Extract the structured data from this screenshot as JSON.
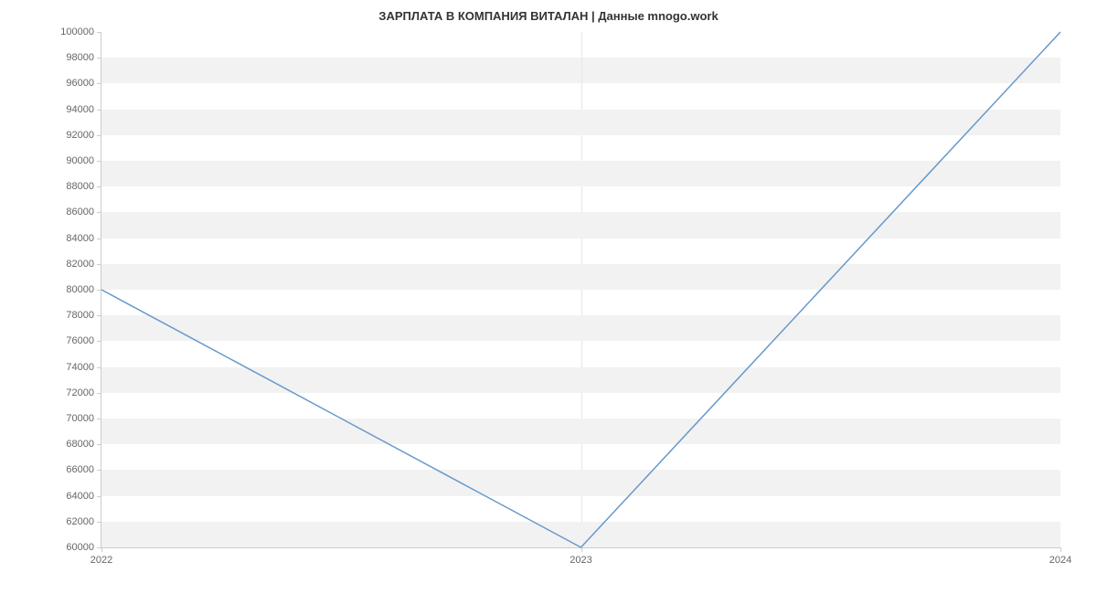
{
  "chart": {
    "type": "line",
    "title": "ЗАРПЛАТА В КОМПАНИЯ ВИТАЛАН | Данные mnogo.work",
    "title_fontsize": 13,
    "title_color": "#333333",
    "background_color": "#ffffff",
    "plot_band_color": "#f2f2f2",
    "axis_color": "#cccccc",
    "tick_label_color": "#666666",
    "tick_fontsize": 11,
    "x_grid_color": "#e6e6e6",
    "x": {
      "labels": [
        "2022",
        "2023",
        "2024"
      ],
      "positions": [
        0,
        0.5,
        1.0
      ]
    },
    "y": {
      "min": 60000,
      "max": 100000,
      "tick_step": 2000,
      "ticks": [
        60000,
        62000,
        64000,
        66000,
        68000,
        70000,
        72000,
        74000,
        76000,
        78000,
        80000,
        82000,
        84000,
        86000,
        88000,
        90000,
        92000,
        94000,
        96000,
        98000,
        100000
      ]
    },
    "series": {
      "color": "#6699cc",
      "line_width": 1.5,
      "points": [
        {
          "x": 0.0,
          "y": 80000
        },
        {
          "x": 0.5,
          "y": 60000
        },
        {
          "x": 1.0,
          "y": 100000
        }
      ]
    }
  }
}
